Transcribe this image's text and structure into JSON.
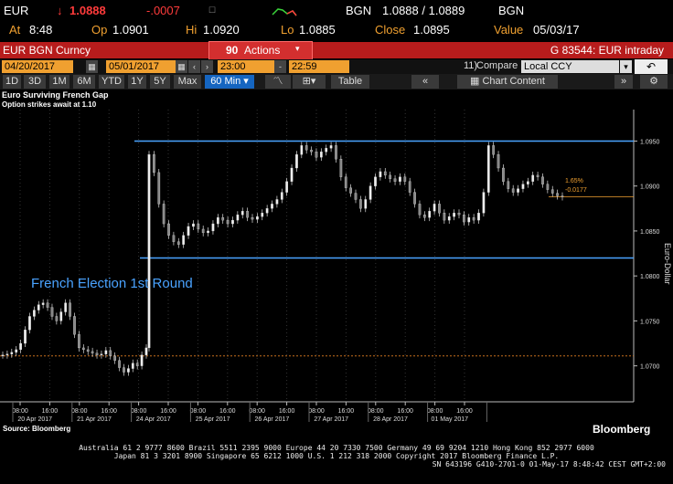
{
  "quote": {
    "ticker": "EUR",
    "arrow": "↓",
    "price": "1.0888",
    "change": "-.0007",
    "source": "BGN",
    "bid_ask": "1.0888 / 1.0889",
    "source2": "BGN",
    "time_label": "At",
    "time": "8:48",
    "open_label": "Op",
    "open": "1.0901",
    "high_label": "Hi",
    "high": "1.0920",
    "low_label": "Lo",
    "low": "1.0885",
    "close_label": "Close",
    "close": "1.0895",
    "value_label": "Value",
    "value_date": "05/03/17"
  },
  "bar": {
    "security": "EUR BGN Curncy",
    "actions_num": "90",
    "actions_label": "Actions",
    "page_info": "G 83544: EUR intraday"
  },
  "dates": {
    "start": "04/20/2017",
    "end": "05/01/2017",
    "time_start": "23:00",
    "time_end": "22:59",
    "compare_label": "Compare",
    "compare_num": "11)",
    "currency": "Local CCY"
  },
  "toolbar": {
    "ranges": [
      "1D",
      "3D",
      "1M",
      "6M",
      "YTD",
      "1Y",
      "5Y",
      "Max"
    ],
    "interval": "60 Min",
    "table_label": "Table",
    "chart_content_label": "Chart Content"
  },
  "chart": {
    "title": "Euro Surviving French Gap",
    "subtitle": "Option strikes await at 1.10",
    "annotation": "French Election 1st Round",
    "yaxis_label": "Euro-Dollar",
    "last_pct": "1.65%",
    "last_change": "-0.0177",
    "source_note": "Source: Bloomberg",
    "brand": "Bloomberg"
  },
  "chart_data": {
    "type": "candlestick",
    "title": "Euro Surviving French Gap",
    "subtitle": "Option strikes await at 1.10",
    "ylabel": "Euro-Dollar",
    "ylim": [
      1.066,
      1.0985
    ],
    "yticks": [
      1.07,
      1.075,
      1.08,
      1.085,
      1.09,
      1.095
    ],
    "yticklabels": [
      "1.0700",
      "1.0750",
      "1.0800",
      "1.0850",
      "1.0900",
      "1.0950"
    ],
    "xticks": [
      {
        "time": "08:00",
        "date": "20 Apr 2017"
      },
      {
        "time": "16:00",
        "date": ""
      },
      {
        "time": "08:00",
        "date": "21 Apr 2017"
      },
      {
        "time": "16:00",
        "date": ""
      },
      {
        "time": "08:00",
        "date": "24 Apr 2017"
      },
      {
        "time": "16:00",
        "date": ""
      },
      {
        "time": "08:00",
        "date": "25 Apr 2017"
      },
      {
        "time": "16:00",
        "date": ""
      },
      {
        "time": "08:00",
        "date": "26 Apr 2017"
      },
      {
        "time": "16:00",
        "date": ""
      },
      {
        "time": "08:00",
        "date": "27 Apr 2017"
      },
      {
        "time": "16:00",
        "date": ""
      },
      {
        "time": "08:00",
        "date": "28 Apr 2017"
      },
      {
        "time": "16:00",
        "date": ""
      },
      {
        "time": "08:00",
        "date": "01 May 2017"
      },
      {
        "time": "16:00",
        "date": ""
      }
    ],
    "resistance": 1.095,
    "support": 1.082,
    "pre_election_level": 1.0711,
    "last_price": 1.0888,
    "path": [
      1.0712,
      1.0713,
      1.0715,
      1.0718,
      1.0725,
      1.074,
      1.0755,
      1.0762,
      1.0768,
      1.077,
      1.0765,
      1.0755,
      1.075,
      1.076,
      1.077,
      1.0755,
      1.0735,
      1.072,
      1.0718,
      1.0716,
      1.0714,
      1.0712,
      1.0713,
      1.0717,
      1.0711,
      1.0706,
      1.0698,
      1.0693,
      1.0697,
      1.0703,
      1.07,
      1.0712,
      1.072,
      1.0935,
      1.0915,
      1.088,
      1.0858,
      1.0845,
      1.0838,
      1.0835,
      1.0845,
      1.0855,
      1.0858,
      1.0852,
      1.0848,
      1.085,
      1.0858,
      1.0865,
      1.0862,
      1.0858,
      1.0862,
      1.0868,
      1.0872,
      1.0865,
      1.0863,
      1.0866,
      1.087,
      1.0875,
      1.088,
      1.0885,
      1.0893,
      1.0905,
      1.092,
      1.0935,
      1.0945,
      1.094,
      1.0938,
      1.0932,
      1.0938,
      1.0942,
      1.0945,
      1.093,
      1.091,
      1.0898,
      1.0892,
      1.0885,
      1.0875,
      1.0885,
      1.09,
      1.091,
      1.0916,
      1.0912,
      1.0908,
      1.0905,
      1.091,
      1.0905,
      1.0893,
      1.088,
      1.0868,
      1.0865,
      1.0872,
      1.088,
      1.087,
      1.0862,
      1.0866,
      1.087,
      1.0868,
      1.086,
      1.0865,
      1.0862,
      1.087,
      1.0893,
      1.0945,
      1.0935,
      1.092,
      1.0905,
      1.0897,
      1.0893,
      1.0897,
      1.0902,
      1.0905,
      1.0912,
      1.091,
      1.0902,
      1.0896,
      1.0892,
      1.0889,
      1.0888
    ]
  },
  "footer": {
    "line1": "Australia 61 2 9777 8600 Brazil 5511 2395 9000 Europe 44 20 7330 7500 Germany 49 69 9204 1210 Hong Kong 852 2977 6000",
    "line2": "Japan 81 3 3201 8900       Singapore 65 6212 1000       U.S. 1 212 318 2000          Copyright 2017 Bloomberg Finance L.P.",
    "line3": "SN 643196 G410-2701-0 01-May-17  8:48:42 CEST GMT+2:00"
  },
  "colors": {
    "amber": "#f0a030",
    "red": "#ff3b3b",
    "support_line": "#4aa3ff",
    "pre_election_line": "#c8701e"
  }
}
